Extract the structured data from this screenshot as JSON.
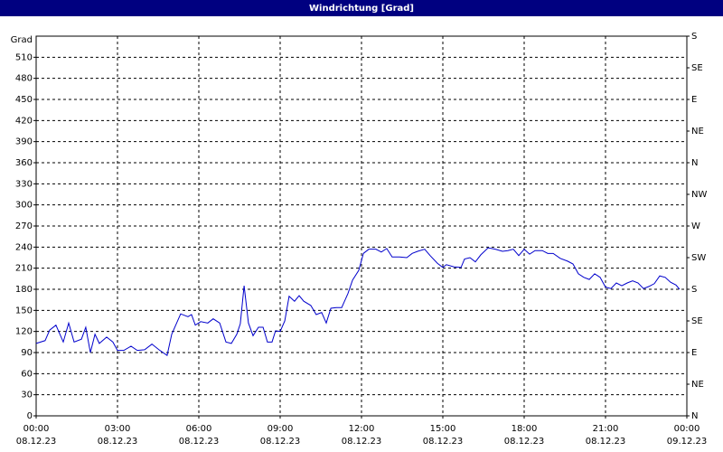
{
  "chart_data": {
    "type": "line",
    "title": "Windrichtung [Grad]",
    "y_label": "Grad",
    "color": "#0000cc",
    "x": [
      0,
      0.33,
      0.5,
      0.73,
      1,
      1.2,
      1.4,
      1.67,
      1.83,
      2,
      2.17,
      2.33,
      2.6,
      2.83,
      3,
      3.23,
      3.5,
      3.73,
      4,
      4.27,
      4.53,
      4.83,
      5,
      5.33,
      5.6,
      5.73,
      5.87,
      6.07,
      6.33,
      6.53,
      6.77,
      7,
      7.2,
      7.4,
      7.53,
      7.67,
      7.83,
      8,
      8.2,
      8.37,
      8.53,
      8.7,
      8.83,
      9,
      9.17,
      9.33,
      9.53,
      9.7,
      9.87,
      10.13,
      10.33,
      10.53,
      10.7,
      10.87,
      11.07,
      11.27,
      11.5,
      11.67,
      11.9,
      12.07,
      12.27,
      12.53,
      12.73,
      12.93,
      13.13,
      13.4,
      13.67,
      13.87,
      14.07,
      14.33,
      14.53,
      14.8,
      15,
      15.13,
      15.4,
      15.67,
      15.8,
      16,
      16.2,
      16.4,
      16.67,
      16.93,
      17.2,
      17.4,
      17.6,
      17.8,
      18,
      18.2,
      18.4,
      18.67,
      18.87,
      19.07,
      19.33,
      19.6,
      19.8,
      20,
      20.2,
      20.4,
      20.6,
      20.8,
      21,
      21.2,
      21.4,
      21.6,
      21.8,
      22,
      22.2,
      22.4,
      22.6,
      22.8,
      23,
      23.2,
      23.4,
      23.6,
      23.73
    ],
    "values": [
      103,
      107,
      122,
      129,
      105,
      132,
      105,
      109,
      126,
      90,
      116,
      103,
      112,
      105,
      93,
      93,
      99,
      93,
      94,
      102,
      94,
      86,
      116,
      145,
      141,
      144,
      129,
      134,
      132,
      138,
      132,
      105,
      103,
      116,
      131,
      185,
      132,
      114,
      126,
      126,
      105,
      105,
      121,
      120,
      135,
      170,
      163,
      171,
      163,
      157,
      144,
      147,
      132,
      153,
      154,
      154,
      174,
      193,
      207,
      231,
      237,
      237,
      233,
      238,
      226,
      226,
      225,
      231,
      234,
      237,
      228,
      217,
      211,
      215,
      212,
      211,
      223,
      225,
      219,
      229,
      239,
      237,
      234,
      235,
      237,
      228,
      237,
      230,
      235,
      235,
      231,
      231,
      224,
      220,
      216,
      202,
      197,
      194,
      202,
      197,
      183,
      181,
      189,
      185,
      189,
      192,
      189,
      181,
      184,
      188,
      199,
      197,
      190,
      186,
      180
    ],
    "xlim": [
      0,
      24
    ],
    "xticks": [
      {
        "value": 0,
        "label": "00:00\n08.12.23"
      },
      {
        "value": 3,
        "label": "03:00\n08.12.23"
      },
      {
        "value": 6,
        "label": "06:00\n08.12.23"
      },
      {
        "value": 9,
        "label": "09:00\n08.12.23"
      },
      {
        "value": 12,
        "label": "12:00\n08.12.23"
      },
      {
        "value": 15,
        "label": "15:00\n08.12.23"
      },
      {
        "value": 18,
        "label": "18:00\n08.12.23"
      },
      {
        "value": 21,
        "label": "21:00\n08.12.23"
      },
      {
        "value": 24,
        "label": "00:00\n09.12.23"
      }
    ],
    "ylim": [
      0,
      540
    ],
    "yticks": [
      0,
      30,
      60,
      90,
      120,
      150,
      180,
      210,
      240,
      270,
      300,
      330,
      360,
      390,
      420,
      450,
      480,
      510
    ],
    "y2lim": [
      0,
      540
    ],
    "y2ticks": [
      {
        "value": 0,
        "label": "N"
      },
      {
        "value": 45,
        "label": "NE"
      },
      {
        "value": 90,
        "label": "E"
      },
      {
        "value": 135,
        "label": "SE"
      },
      {
        "value": 180,
        "label": "S"
      },
      {
        "value": 225,
        "label": "SW"
      },
      {
        "value": 270,
        "label": "W"
      },
      {
        "value": 315,
        "label": "NW"
      },
      {
        "value": 360,
        "label": "N"
      },
      {
        "value": 405,
        "label": "NE"
      },
      {
        "value": 450,
        "label": "E"
      },
      {
        "value": 495,
        "label": "SE"
      },
      {
        "value": 540,
        "label": "S"
      }
    ],
    "grid": true
  }
}
